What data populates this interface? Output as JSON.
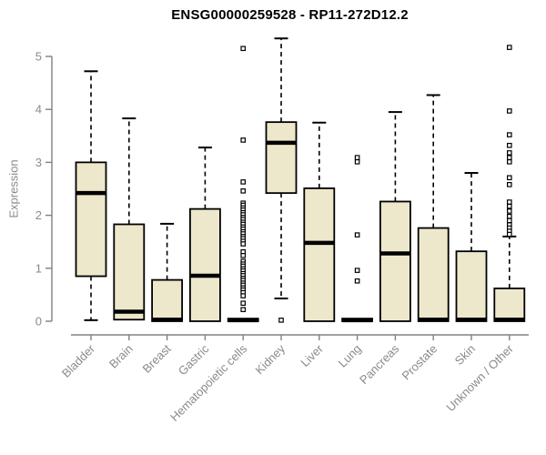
{
  "title": "ENSG00000259528 - RP11-272D12.2",
  "chart_data": {
    "type": "boxplot",
    "title": "ENSG00000259528 - RP11-272D12.2",
    "xlabel": "",
    "ylabel": "Expression",
    "ylim": [
      0,
      5
    ],
    "yticks": [
      0,
      1,
      2,
      3,
      4,
      5
    ],
    "grid": false,
    "legend": "none",
    "categories": [
      "Bladder",
      "Brain",
      "Breast",
      "Gastric",
      "Hematopoietic cells",
      "Kidney",
      "Liver",
      "Lung",
      "Pancreas",
      "Prostate",
      "Skin",
      "Unknown / Other"
    ],
    "series": [
      {
        "name": "Bladder",
        "whisker_low": 0.02,
        "q1": 0.85,
        "median": 2.42,
        "q3": 3.0,
        "whisker_high": 4.72,
        "outliers": []
      },
      {
        "name": "Brain",
        "whisker_low": 0.03,
        "q1": 0.03,
        "median": 0.18,
        "q3": 1.83,
        "whisker_high": 3.83,
        "outliers": []
      },
      {
        "name": "Breast",
        "whisker_low": 0.0,
        "q1": 0.0,
        "median": 0.03,
        "q3": 0.78,
        "whisker_high": 1.84,
        "outliers": []
      },
      {
        "name": "Gastric",
        "whisker_low": 0.0,
        "q1": 0.0,
        "median": 0.86,
        "q3": 2.12,
        "whisker_high": 3.28,
        "outliers": []
      },
      {
        "name": "Hematopoietic cells",
        "whisker_low": 0.0,
        "q1": 0.0,
        "median": 0.02,
        "q3": 0.05,
        "whisker_high": 0.05,
        "outliers": [
          5.15,
          3.42,
          2.63,
          2.46,
          2.23,
          2.19,
          2.14,
          2.1,
          2.05,
          2.01,
          1.96,
          1.92,
          1.87,
          1.83,
          1.78,
          1.74,
          1.69,
          1.65,
          1.6,
          1.56,
          1.51,
          1.46,
          1.31,
          1.24,
          1.13,
          1.08,
          1.04,
          0.99,
          0.95,
          0.9,
          0.86,
          0.81,
          0.77,
          0.72,
          0.68,
          0.63,
          0.59,
          0.54,
          0.48,
          0.34,
          0.22
        ]
      },
      {
        "name": "Kidney",
        "whisker_low": 0.43,
        "q1": 2.42,
        "median": 3.37,
        "q3": 3.76,
        "whisker_high": 5.34,
        "outliers": [
          0.02
        ]
      },
      {
        "name": "Liver",
        "whisker_low": 0.0,
        "q1": 0.0,
        "median": 1.48,
        "q3": 2.51,
        "whisker_high": 3.75,
        "outliers": []
      },
      {
        "name": "Lung",
        "whisker_low": 0.0,
        "q1": 0.0,
        "median": 0.02,
        "q3": 0.05,
        "whisker_high": 0.05,
        "outliers": [
          3.09,
          3.01,
          1.63,
          0.96,
          0.76
        ]
      },
      {
        "name": "Pancreas",
        "whisker_low": 0.0,
        "q1": 0.0,
        "median": 1.28,
        "q3": 2.26,
        "whisker_high": 3.95,
        "outliers": []
      },
      {
        "name": "Prostate",
        "whisker_low": 0.0,
        "q1": 0.0,
        "median": 0.03,
        "q3": 1.76,
        "whisker_high": 4.27,
        "outliers": []
      },
      {
        "name": "Skin",
        "whisker_low": 0.0,
        "q1": 0.0,
        "median": 0.03,
        "q3": 1.32,
        "whisker_high": 2.8,
        "outliers": []
      },
      {
        "name": "Unknown / Other",
        "whisker_low": 0.0,
        "q1": 0.0,
        "median": 0.03,
        "q3": 0.62,
        "whisker_high": 1.6,
        "outliers": [
          5.17,
          3.97,
          3.52,
          3.32,
          3.18,
          3.09,
          3.01,
          2.71,
          2.58,
          2.25,
          2.17,
          2.08,
          1.98,
          1.9,
          1.82,
          1.76,
          1.7,
          1.64
        ]
      }
    ]
  },
  "style": {
    "background": "#FFFFFF",
    "box_fill": "#EDE8CC",
    "box_stroke": "#000000",
    "median_color": "#000000",
    "whisker_color": "#000000",
    "outlier_stroke": "#000000",
    "outlier_fill": "#FFFFFF",
    "axis_color": "#808080",
    "tick_text_color": "#8A8A8A",
    "title_color": "#000000"
  }
}
